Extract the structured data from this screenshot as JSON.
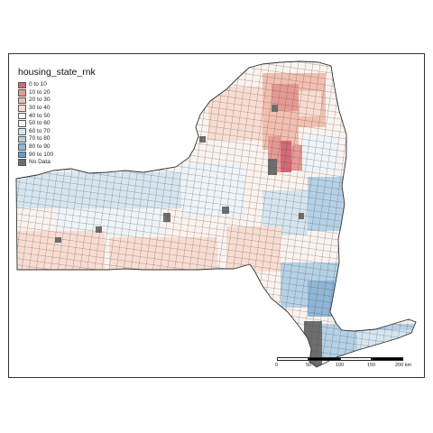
{
  "legend": {
    "title": "housing_state_rnk",
    "items": [
      {
        "label": "0 to 10",
        "color": "#d46a78"
      },
      {
        "label": "10 to 20",
        "color": "#e69a93"
      },
      {
        "label": "20 to 30",
        "color": "#f2bfb0"
      },
      {
        "label": "30 to 40",
        "color": "#f9ddd2"
      },
      {
        "label": "40 to 50",
        "color": "#fcf3ef"
      },
      {
        "label": "50 to 60",
        "color": "#eef4f8"
      },
      {
        "label": "60 to 70",
        "color": "#d6e6f0"
      },
      {
        "label": "70 to 80",
        "color": "#b5d1e5"
      },
      {
        "label": "80 to 90",
        "color": "#8fb6d6"
      },
      {
        "label": "90 to 100",
        "color": "#6b9cc6"
      },
      {
        "label": "No Data",
        "color": "#6e6e6e"
      }
    ]
  },
  "scale_bar": {
    "ticks": [
      "0",
      "50",
      "100",
      "150",
      "200 km"
    ]
  },
  "colors": {
    "border": "#4a4a4a",
    "nodata": "#6e6e6e"
  }
}
